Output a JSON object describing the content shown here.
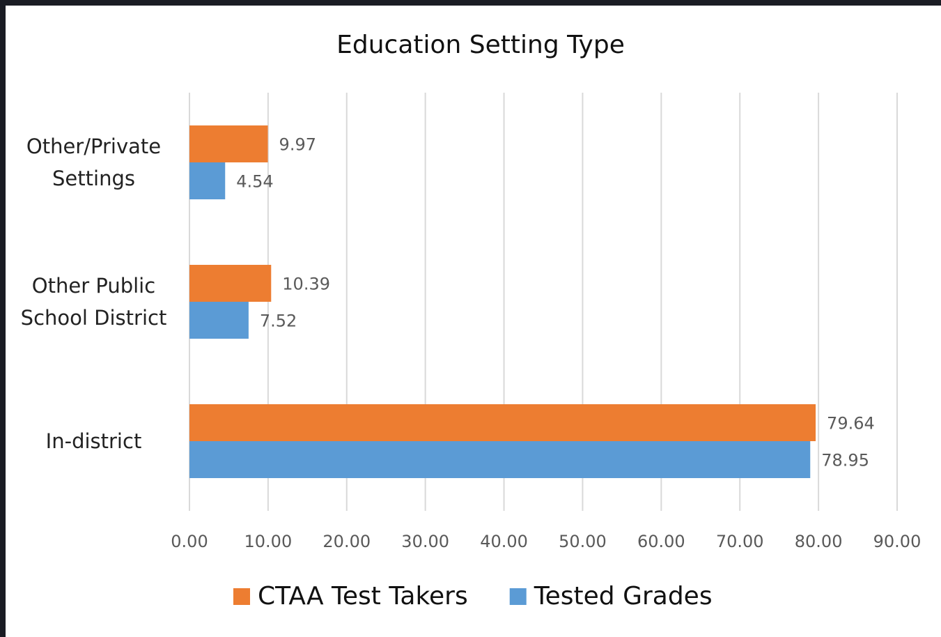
{
  "chart_data": {
    "type": "hbar",
    "title": "Education Setting Type",
    "categories": [
      "Other/Private Settings",
      "Other Public School District",
      "In-district"
    ],
    "series": [
      {
        "name": "CTAA Test Takers",
        "color": "#ed7d31",
        "values": [
          9.97,
          10.39,
          79.64
        ]
      },
      {
        "name": "Tested Grades",
        "color": "#5b9bd5",
        "values": [
          4.54,
          7.52,
          78.95
        ]
      }
    ],
    "xlim": [
      0,
      90
    ],
    "xticks": [
      {
        "value": 0,
        "label": "0.00"
      },
      {
        "value": 10,
        "label": "10.00"
      },
      {
        "value": 20,
        "label": "20.00"
      },
      {
        "value": 30,
        "label": "30.00"
      },
      {
        "value": 40,
        "label": "40.00"
      },
      {
        "value": 50,
        "label": "50.00"
      },
      {
        "value": 60,
        "label": "60.00"
      },
      {
        "value": 70,
        "label": "70.00"
      },
      {
        "value": 80,
        "label": "80.00"
      },
      {
        "value": 90,
        "label": "90.00"
      }
    ],
    "grid": true,
    "legend": "bottom"
  }
}
